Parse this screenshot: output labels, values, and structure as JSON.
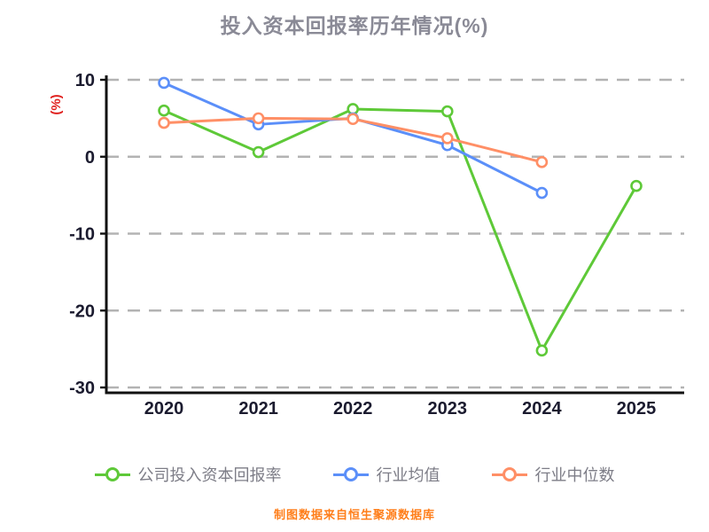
{
  "title": "投入资本回报率历年情况(%)",
  "ylabel": "(%)",
  "footer": "制图数据来自恒生聚源数据库",
  "colors": {
    "company": "#5ec938",
    "industry_avg": "#5b8ff9",
    "industry_median": "#ff8f66",
    "title": "#8a8a96",
    "axis": "#111111",
    "tick_label": "#1b1b2f",
    "grid": "#b3b3b3",
    "ylabel": "#e0211f",
    "footer": "#ff7e1a",
    "legend_text": "#7d7d87"
  },
  "chart_data": {
    "type": "line",
    "categories": [
      "2020",
      "2021",
      "2022",
      "2023",
      "2024",
      "2025"
    ],
    "series": [
      {
        "name": "公司投入资本回报率",
        "color_key": "company",
        "values": [
          6.0,
          0.6,
          6.2,
          5.9,
          -25.2,
          -3.8
        ]
      },
      {
        "name": "行业均值",
        "color_key": "industry_avg",
        "values": [
          9.6,
          4.2,
          5.0,
          1.5,
          -4.7,
          null
        ]
      },
      {
        "name": "行业中位数",
        "color_key": "industry_median",
        "values": [
          4.4,
          5.0,
          4.9,
          2.4,
          -0.7,
          null
        ]
      }
    ],
    "title": "投入资本回报率历年情况(%)",
    "xlabel": "",
    "ylabel": "(%)",
    "ylim": [
      -30,
      10
    ],
    "yticks": [
      10,
      0,
      -10,
      -20,
      -30
    ],
    "grid": "horizontal-dashed",
    "legend_position": "bottom",
    "marker": "open-circle"
  }
}
